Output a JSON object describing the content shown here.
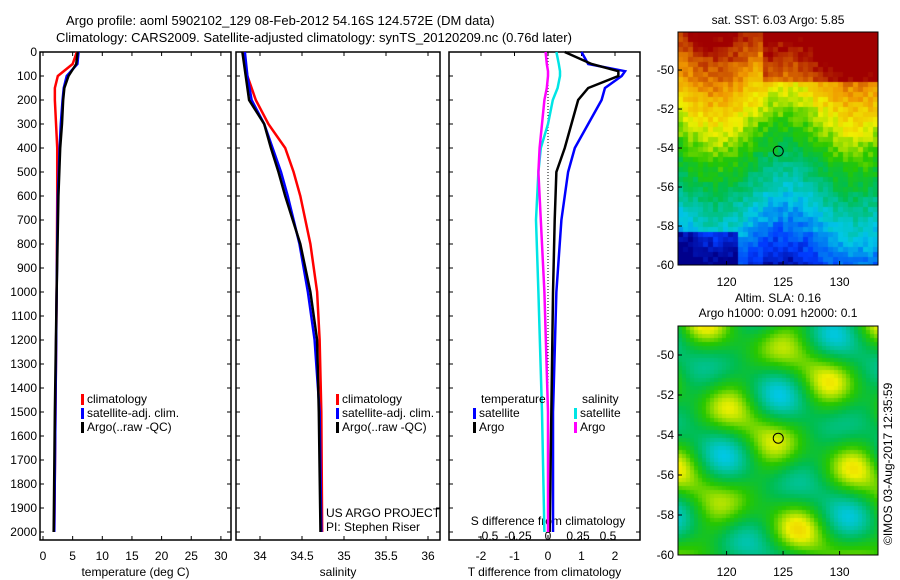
{
  "title_line1": "Argo profile: aoml 5902102_129 08-Feb-2012 54.16S 124.572E (DM data)",
  "title_line2": "Climatology: CARS2009. Satellite-adjusted climatology: synTS_20120209.nc (0.76d later)",
  "colors": {
    "climatology": "#ff0000",
    "satellite": "#0000ff",
    "argo": "#000000",
    "s_satellite": "#00e5e5",
    "s_argo": "#ff00ff"
  },
  "chart_data": [
    {
      "type": "line",
      "name": "temperature",
      "xlabel": "temperature (deg C)",
      "xlim": [
        -0.5,
        31.5
      ],
      "xticks": [
        0,
        5,
        10,
        15,
        20,
        25,
        30
      ],
      "ylim": [
        0,
        2050
      ],
      "yticks": [
        0,
        100,
        200,
        300,
        400,
        500,
        600,
        700,
        800,
        900,
        1000,
        1100,
        1200,
        1300,
        1400,
        1500,
        1600,
        1700,
        1800,
        1900,
        2000
      ],
      "legend": [
        "climatology",
        "satellite-adj. clim.",
        "Argo(..raw -QC)"
      ],
      "depth": [
        0,
        50,
        100,
        150,
        200,
        300,
        400,
        600,
        1000,
        1500,
        2000
      ],
      "series": [
        {
          "name": "climatology",
          "color_key": "climatology",
          "values": [
            5.7,
            5.0,
            2.5,
            2.0,
            2.0,
            2.2,
            2.4,
            2.4,
            2.3,
            2.1,
            1.9
          ]
        },
        {
          "name": "satellite-adj. clim.",
          "color_key": "satellite",
          "values": [
            6.0,
            5.8,
            4.0,
            3.5,
            3.3,
            3.0,
            2.8,
            2.5,
            2.3,
            2.1,
            1.9
          ]
        },
        {
          "name": "Argo(..raw -QC)",
          "color_key": "argo",
          "values": [
            5.85,
            5.6,
            4.3,
            3.6,
            3.4,
            3.2,
            2.9,
            2.6,
            2.3,
            2.0,
            1.8
          ]
        }
      ]
    },
    {
      "type": "line",
      "name": "salinity",
      "xlabel": "salinity",
      "xlim": [
        33.7,
        36.1
      ],
      "xticks": [
        34,
        34.5,
        35,
        35.5,
        36
      ],
      "legend": [
        "climatology",
        "satellite-adj. clim.",
        "Argo(..raw -QC)"
      ],
      "annotation": [
        "US ARGO PROJECT",
        "PI: Stephen Riser"
      ],
      "depth": [
        0,
        100,
        200,
        300,
        400,
        500,
        600,
        800,
        1000,
        1200,
        1500,
        2000
      ],
      "series": [
        {
          "name": "climatology",
          "color_key": "climatology",
          "values": [
            33.8,
            33.85,
            33.95,
            34.1,
            34.3,
            34.4,
            34.48,
            34.6,
            34.68,
            34.71,
            34.73,
            34.74
          ]
        },
        {
          "name": "satellite-adj. clim.",
          "color_key": "satellite",
          "values": [
            33.82,
            33.85,
            33.9,
            34.05,
            34.15,
            34.25,
            34.33,
            34.47,
            34.57,
            34.65,
            34.71,
            34.73
          ]
        },
        {
          "name": "Argo(..raw -QC)",
          "color_key": "argo",
          "values": [
            33.79,
            33.83,
            33.87,
            34.05,
            34.13,
            34.22,
            34.3,
            34.48,
            34.6,
            34.68,
            34.7,
            34.72
          ]
        }
      ]
    },
    {
      "type": "line",
      "name": "difference",
      "xlabel": "T difference from climatology",
      "xlabel_top": "S difference from climatology",
      "xlim": [
        -3,
        2.8
      ],
      "xticks": [
        -2,
        -1,
        0,
        1,
        2
      ],
      "s_xticks": [
        -0.5,
        -0.25,
        0,
        0.25,
        0.5
      ],
      "legend_t_title": "temperature",
      "legend_s_title": "salinity",
      "legend_t": [
        "satellite",
        "Argo"
      ],
      "legend_s": [
        "satellite",
        "Argo"
      ],
      "depth": [
        0,
        50,
        80,
        100,
        150,
        200,
        300,
        400,
        500,
        700,
        1000,
        1500,
        2000
      ],
      "series": [
        {
          "name": "T satellite",
          "color_key": "satellite",
          "units": "T",
          "values": [
            1.0,
            1.2,
            2.3,
            2.2,
            1.7,
            1.6,
            1.2,
            0.8,
            0.6,
            0.4,
            0.25,
            0.15,
            0.15
          ]
        },
        {
          "name": "T Argo",
          "color_key": "argo",
          "units": "T",
          "values": [
            0.5,
            1.3,
            2.1,
            2.1,
            1.2,
            0.9,
            0.7,
            0.5,
            0.25,
            0.2,
            0.15,
            0.1,
            0.05
          ]
        },
        {
          "name": "S satellite",
          "color_key": "s_satellite",
          "units": "S",
          "values": [
            0.07,
            0.09,
            0.1,
            0.1,
            0.08,
            0.04,
            0.0,
            -0.06,
            -0.08,
            -0.1,
            -0.08,
            -0.05,
            -0.03
          ]
        },
        {
          "name": "S Argo",
          "color_key": "s_argo",
          "units": "S",
          "values": [
            -0.02,
            -0.01,
            0.0,
            0.0,
            -0.01,
            -0.03,
            -0.05,
            -0.07,
            -0.08,
            -0.06,
            -0.03,
            0.0,
            0.0
          ]
        }
      ]
    },
    {
      "type": "heatmap",
      "name": "sst-map",
      "title": "sat. SST: 6.03 Argo: 5.85",
      "xticks": [
        120,
        125,
        130
      ],
      "yticks": [
        -50,
        -52,
        -54,
        -56,
        -58,
        -60
      ],
      "xlim": [
        115.7,
        133.4
      ],
      "ylim": [
        -60,
        -48.05
      ],
      "marker": {
        "lon": 124.572,
        "lat": -54.16
      }
    },
    {
      "type": "heatmap",
      "name": "sla-map",
      "title_line1": "Altim. SLA: 0.16",
      "title_line2": "Argo h1000: 0.091 h2000: 0.1",
      "xticks": [
        120,
        125,
        130
      ],
      "yticks": [
        -50,
        -52,
        -54,
        -56,
        -58,
        -60
      ],
      "xlim": [
        115.7,
        133.4
      ],
      "ylim": [
        -60,
        -48.55
      ],
      "marker": {
        "lon": 124.572,
        "lat": -54.16
      }
    }
  ],
  "credit": "©IMOS 03-Aug-2017 12:35:59"
}
